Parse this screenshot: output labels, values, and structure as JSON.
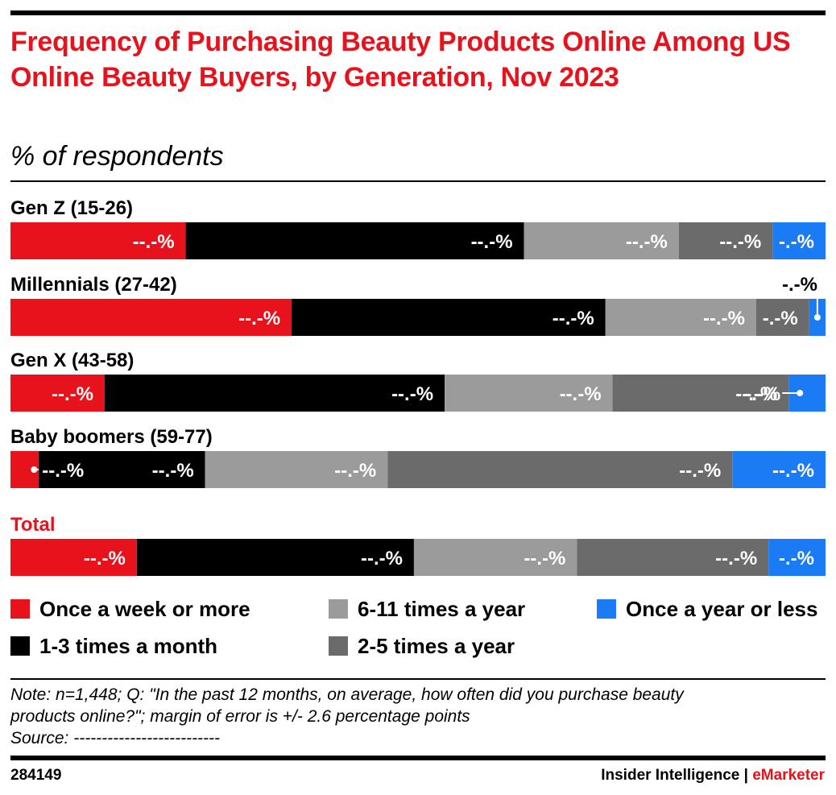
{
  "title": "Frequency of Purchasing Beauty Products Online Among US Online Beauty Buyers, by Generation, Nov 2023",
  "subtitle": "% of respondents",
  "chart_data": {
    "type": "bar",
    "orientation": "horizontal",
    "stacked": "100%",
    "categories": [
      "Gen Z (15-26)",
      "Millennials (27-42)",
      "Gen X (43-58)",
      "Baby boomers (59-77)",
      "Total"
    ],
    "highlight_category": "Total",
    "series": [
      {
        "name": "Once a week or more",
        "color": "#e8121c",
        "values": [
          21.5,
          34.5,
          11.5,
          3.5,
          15.5
        ],
        "labels": [
          "--.-%",
          "--.-%",
          "--.-%",
          "",
          "--.-%"
        ]
      },
      {
        "name": "1-3 times a month",
        "color": "#000000",
        "values": [
          41.5,
          38.5,
          41.5,
          20.5,
          34
        ],
        "labels": [
          "--.-%",
          "--.-%",
          "--.-%",
          "--.-%",
          "--.-%"
        ]
      },
      {
        "name": "6-11 times a year",
        "color": "#9b9b9b",
        "values": [
          19,
          18.5,
          20.5,
          22.5,
          20
        ],
        "labels": [
          "--.-%",
          "--.-%",
          "--.-%",
          "--.-%",
          "--.-%"
        ]
      },
      {
        "name": "2-5 times a year",
        "color": "#6b6b6b",
        "values": [
          11.5,
          6.5,
          21.5,
          42.5,
          23.5
        ],
        "labels": [
          "--.-%",
          "-.-%",
          "--.-%",
          "--.-%",
          "--.-%"
        ]
      },
      {
        "name": "Once a year or less",
        "color": "#1a7bf5",
        "values": [
          6.5,
          2,
          4.5,
          11.5,
          7
        ],
        "labels": [
          "-.-%",
          "-.-%",
          "-.-%",
          "--.-%",
          "-.-%"
        ]
      }
    ],
    "legend": {
      "position": "bottom",
      "order": [
        [
          0,
          2,
          4
        ],
        [
          1,
          3
        ]
      ]
    },
    "axis": {
      "min": 0,
      "max": 100,
      "visible": false
    }
  },
  "note": {
    "lines": [
      "Note: n=1,448; Q: \"In the past 12 months, on average, how often did you purchase beauty",
      "products online?\"; margin of error is +/- 2.6 percentage points",
      "Source: --------------------------"
    ]
  },
  "footer": {
    "id": "284149",
    "brand_main": "Insider Intelligence | ",
    "brand_accent": "eMarketer"
  }
}
